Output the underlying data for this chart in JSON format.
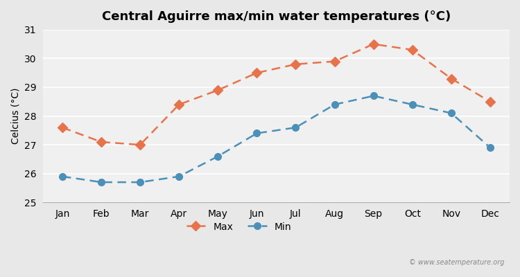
{
  "title": "Central Aguirre max/min water temperatures (°C)",
  "ylabel": "Celcius (°C)",
  "months": [
    "Jan",
    "Feb",
    "Mar",
    "Apr",
    "May",
    "Jun",
    "Jul",
    "Aug",
    "Sep",
    "Oct",
    "Nov",
    "Dec"
  ],
  "max_values": [
    27.6,
    27.1,
    27.0,
    28.4,
    28.9,
    29.5,
    29.8,
    29.9,
    30.5,
    30.3,
    29.3,
    28.5
  ],
  "min_values": [
    25.9,
    25.7,
    25.7,
    25.9,
    26.6,
    27.4,
    27.6,
    28.4,
    28.7,
    28.4,
    28.1,
    26.9
  ],
  "max_color": "#e8734a",
  "min_color": "#4a90b8",
  "bg_color": "#e8e8e8",
  "plot_bg_color": "#f0f0f0",
  "ylim": [
    25,
    31
  ],
  "yticks": [
    25,
    26,
    27,
    28,
    29,
    30,
    31
  ],
  "watermark": "© www.seatemperature.org",
  "legend_max": "Max",
  "legend_min": "Min"
}
